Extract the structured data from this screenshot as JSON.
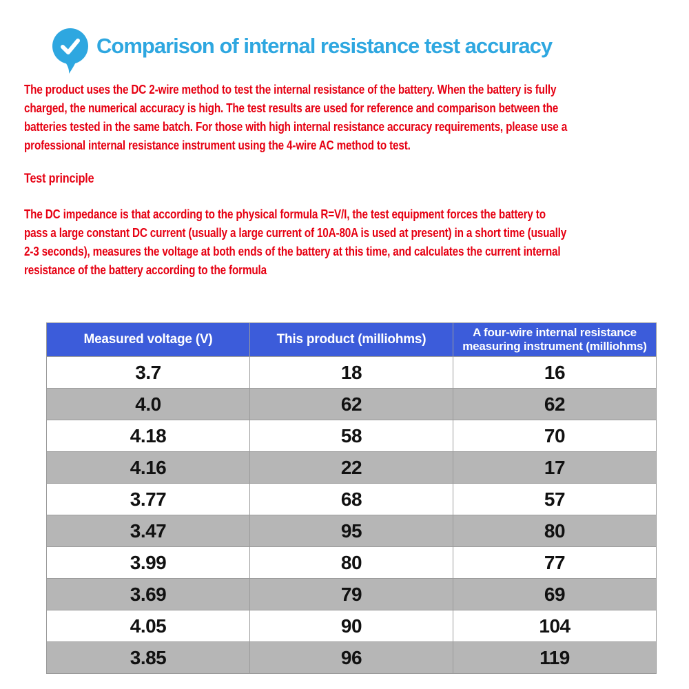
{
  "colors": {
    "accent_blue": "#2ea7e0",
    "text_red": "#e60012",
    "header_blue": "#3c5cda",
    "header_text": "#ffffff",
    "row_gray": "#b6b6b6",
    "row_white": "#ffffff",
    "border_gray": "#9b9b9b",
    "cell_text": "#111111"
  },
  "header": {
    "icon": "check-bubble-icon",
    "title": "Comparison of internal resistance test accuracy"
  },
  "intro": {
    "text": "The product uses the DC 2-wire method to test the internal resistance of the battery. When the battery is fully\ncharged, the numerical accuracy is high. The test results are used for reference and comparison between the\nbatteries tested in the same batch. For those with high internal resistance accuracy requirements, please use a\nprofessional internal resistance instrument using the 4-wire AC method to test."
  },
  "principle": {
    "heading": "Test principle",
    "body": "The DC impedance is that according to the physical formula R=V/I, the test equipment forces the battery to\npass a large constant DC current (usually a large current of 10A-80A is used at present) in a short time (usually\n2-3 seconds), measures the voltage at both ends of the battery at this time, and calculates the current internal\nresistance of the battery according to the formula"
  },
  "table": {
    "columns": [
      "Measured voltage (V)",
      "This product (milliohms)",
      "A four-wire internal resistance\nmeasuring instrument (milliohms)"
    ],
    "rows": [
      [
        "3.7",
        "18",
        "16"
      ],
      [
        "4.0",
        "62",
        "62"
      ],
      [
        "4.18",
        "58",
        "70"
      ],
      [
        "4.16",
        "22",
        "17"
      ],
      [
        "3.77",
        "68",
        "57"
      ],
      [
        "3.47",
        "95",
        "80"
      ],
      [
        "3.99",
        "80",
        "77"
      ],
      [
        "3.69",
        "79",
        "69"
      ],
      [
        "4.05",
        "90",
        "104"
      ],
      [
        "3.85",
        "96",
        "119"
      ]
    ]
  }
}
